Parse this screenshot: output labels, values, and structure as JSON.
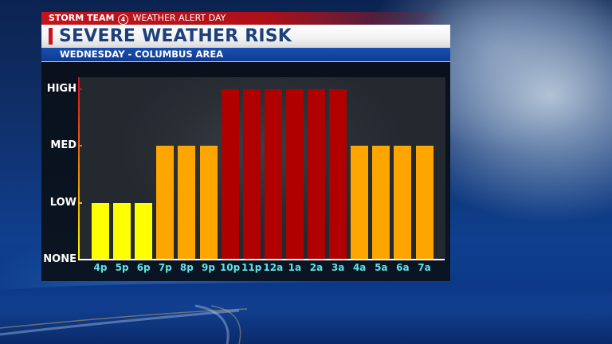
{
  "header": {
    "brand_bold": "STORM TEAM",
    "brand_logo": "4",
    "brand_tail": " WEATHER ALERT DAY",
    "title": "SEVERE WEATHER RISK",
    "subtitle": "WEDNESDAY - COLUMBUS AREA"
  },
  "colors": {
    "low": "#ffff00",
    "med": "#ffa500",
    "high": "#b00000",
    "x_label": "#5fe3e8",
    "brand_red": "#c4141c",
    "title_blue": "#1d3f7a",
    "sub_blue": "#1a4fb0"
  },
  "chart_data": {
    "type": "bar",
    "title": "SEVERE WEATHER RISK",
    "subtitle": "WEDNESDAY - COLUMBUS AREA",
    "xlabel": "",
    "ylabel": "",
    "y_levels": [
      "NONE",
      "LOW",
      "MED",
      "HIGH"
    ],
    "ylim": [
      0,
      3
    ],
    "categories": [
      "4p",
      "5p",
      "6p",
      "7p",
      "8p",
      "9p",
      "10p",
      "11p",
      "12a",
      "1a",
      "2a",
      "3a",
      "4a",
      "5a",
      "6a",
      "7a"
    ],
    "values": [
      1,
      1,
      1,
      2,
      2,
      2,
      3,
      3,
      3,
      3,
      3,
      3,
      2,
      2,
      2,
      2
    ],
    "value_labels": [
      "LOW",
      "LOW",
      "LOW",
      "MED",
      "MED",
      "MED",
      "HIGH",
      "HIGH",
      "HIGH",
      "HIGH",
      "HIGH",
      "HIGH",
      "MED",
      "MED",
      "MED",
      "MED"
    ],
    "grid": false,
    "legend": "none"
  }
}
